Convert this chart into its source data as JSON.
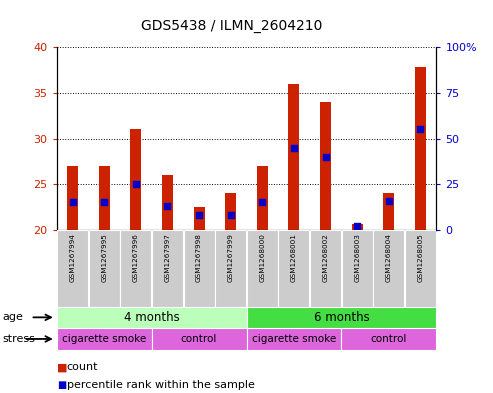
{
  "title": "GDS5438 / ILMN_2604210",
  "samples": [
    "GSM1267994",
    "GSM1267995",
    "GSM1267996",
    "GSM1267997",
    "GSM1267998",
    "GSM1267999",
    "GSM1268000",
    "GSM1268001",
    "GSM1268002",
    "GSM1268003",
    "GSM1268004",
    "GSM1268005"
  ],
  "counts": [
    27.0,
    27.0,
    31.0,
    26.0,
    22.5,
    24.0,
    27.0,
    36.0,
    34.0,
    20.7,
    24.0,
    37.8
  ],
  "percentile_ranks": [
    15,
    15,
    25,
    13,
    8,
    8,
    15,
    45,
    40,
    2,
    16,
    55
  ],
  "baseline": 20,
  "ylim_left": [
    20,
    40
  ],
  "ylim_right": [
    0,
    100
  ],
  "yticks_left": [
    20,
    25,
    30,
    35,
    40
  ],
  "yticks_right": [
    0,
    25,
    50,
    75,
    100
  ],
  "ytick_labels_right": [
    "0",
    "25",
    "50",
    "75",
    "100%"
  ],
  "bar_color": "#cc2200",
  "dot_color": "#0000cc",
  "age_groups": [
    {
      "label": "4 months",
      "start": 0,
      "end": 6,
      "color": "#bbffbb"
    },
    {
      "label": "6 months",
      "start": 6,
      "end": 12,
      "color": "#44dd44"
    }
  ],
  "stress_groups": [
    {
      "label": "cigarette smoke",
      "start": 0,
      "end": 3
    },
    {
      "label": "control",
      "start": 3,
      "end": 6
    },
    {
      "label": "cigarette smoke",
      "start": 6,
      "end": 9
    },
    {
      "label": "control",
      "start": 9,
      "end": 12
    }
  ],
  "stress_color": "#dd66dd",
  "bar_width": 0.35,
  "sample_box_color": "#cccccc",
  "grid_color": "#000000",
  "legend_count_color": "#cc2200",
  "legend_pct_color": "#0000cc"
}
